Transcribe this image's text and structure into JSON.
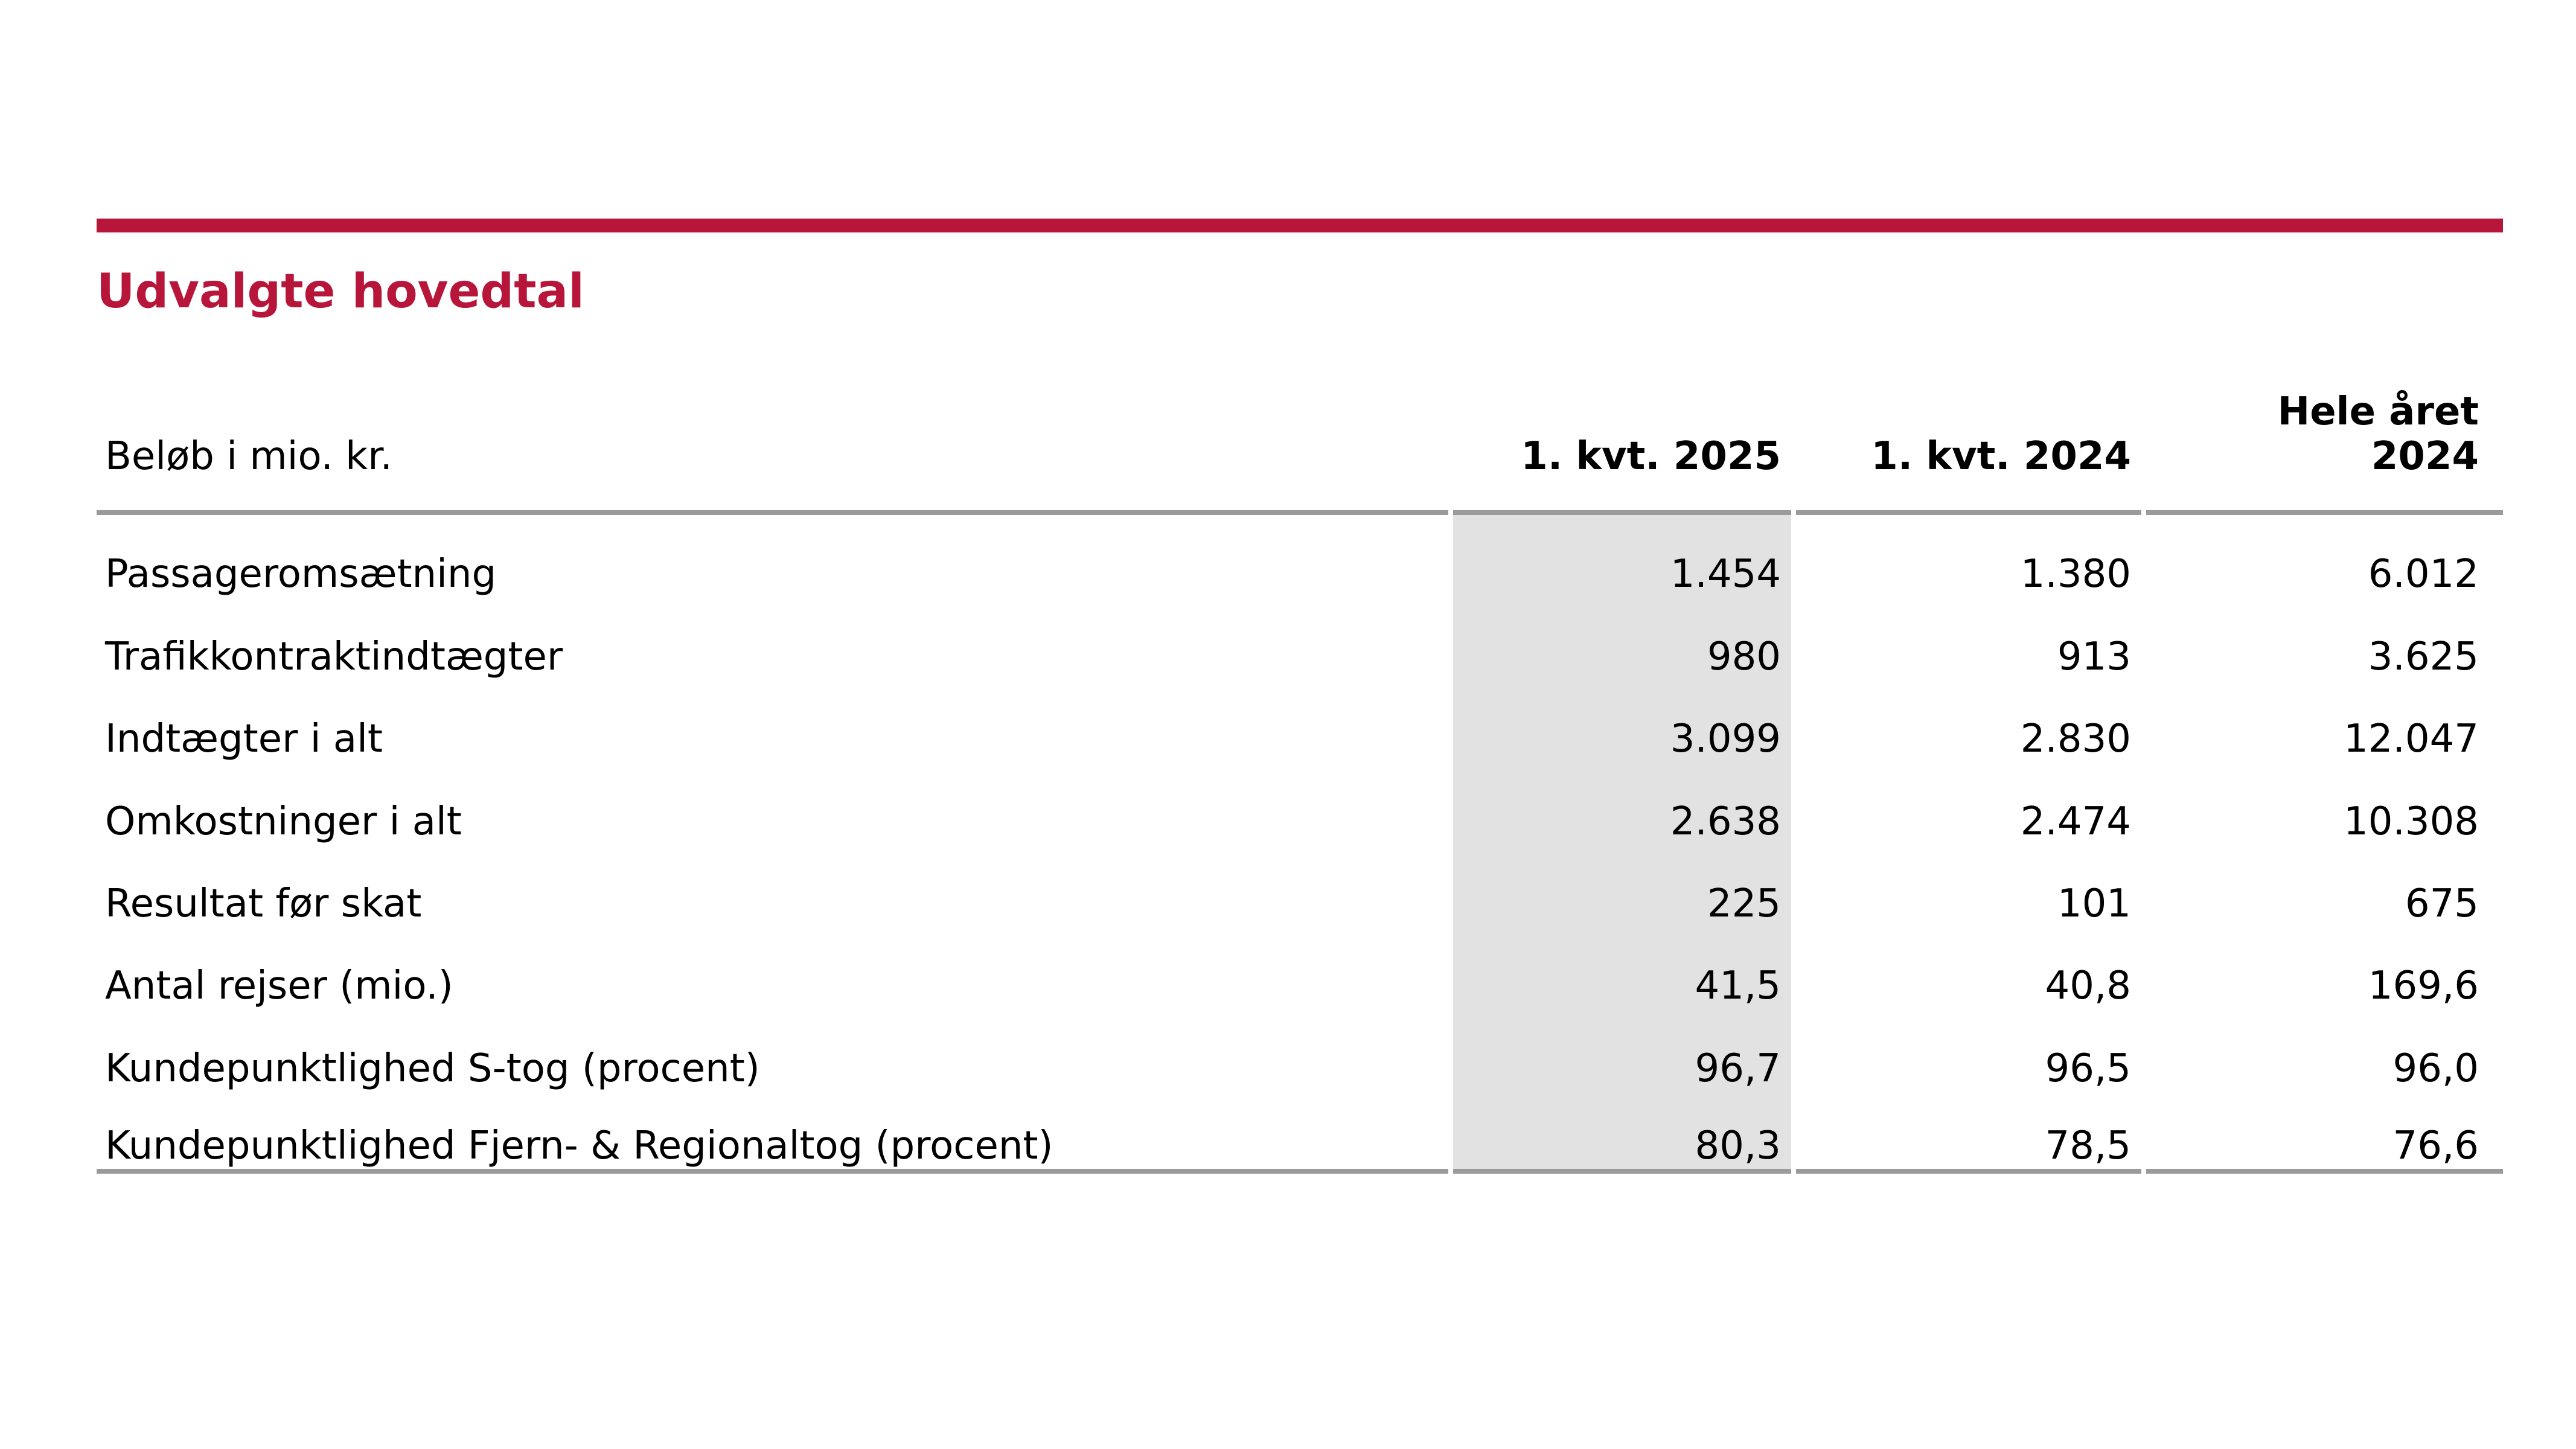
{
  "page": {
    "title": "Udvalgte hovedtal",
    "accent_color": "#b7163a",
    "rule_color": "#9b9b9b",
    "highlight_color": "#e2e2e2"
  },
  "table": {
    "unit_label": "Beløb i mio. kr.",
    "columns": [
      {
        "label": "1. kvt. 2025",
        "highlighted": true
      },
      {
        "label": "1. kvt. 2024",
        "highlighted": false
      },
      {
        "label_line1": "Hele året",
        "label_line2": "2024",
        "highlighted": false
      }
    ],
    "rows": [
      {
        "label": "Passageromsætning",
        "q1_2025": "1.454",
        "q1_2024": "1.380",
        "fy_2024": "6.012"
      },
      {
        "label": "Trafikkontraktindtægter",
        "q1_2025": "980",
        "q1_2024": "913",
        "fy_2024": "3.625"
      },
      {
        "label": "Indtægter i alt",
        "q1_2025": "3.099",
        "q1_2024": "2.830",
        "fy_2024": "12.047"
      },
      {
        "label": "Omkostninger i alt",
        "q1_2025": "2.638",
        "q1_2024": "2.474",
        "fy_2024": "10.308"
      },
      {
        "label": "Resultat før skat",
        "q1_2025": "225",
        "q1_2024": "101",
        "fy_2024": "675"
      },
      {
        "label": "Antal rejser (mio.)",
        "q1_2025": "41,5",
        "q1_2024": "40,8",
        "fy_2024": "169,6"
      },
      {
        "label": "Kundepunktlighed S-tog (procent)",
        "q1_2025": "96,7",
        "q1_2024": "96,5",
        "fy_2024": "96,0"
      },
      {
        "label": "Kundepunktlighed Fjern- & Regionaltog (procent)",
        "q1_2025": "80,3",
        "q1_2024": "78,5",
        "fy_2024": "76,6"
      }
    ]
  }
}
